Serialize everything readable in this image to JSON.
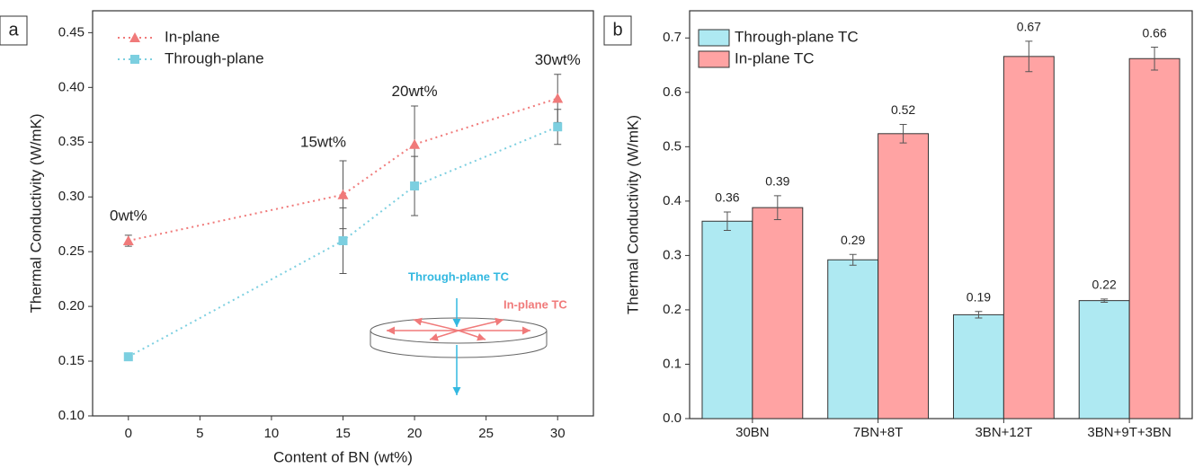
{
  "chart_data": [
    {
      "type": "line",
      "panel_label": "a",
      "x_label": "Content of BN (wt%)",
      "y_label": "Thermal Conductivity (W/mK)",
      "x": [
        0,
        15,
        20,
        30
      ],
      "series": [
        {
          "name": "In-plane",
          "color": "#f07a7a",
          "marker": "triangle",
          "values": [
            0.26,
            0.302,
            0.348,
            0.39
          ],
          "errors": [
            0.005,
            0.031,
            0.035,
            0.022
          ]
        },
        {
          "name": "Through-plane",
          "color": "#7ccfe0",
          "marker": "square",
          "values": [
            0.154,
            0.26,
            0.31,
            0.364
          ],
          "errors": [
            0.003,
            0.03,
            0.027,
            0.016
          ]
        }
      ],
      "annotations": [
        "0wt%",
        "15wt%",
        "20wt%",
        "30wt%"
      ],
      "inset_labels": [
        "Through-plane TC",
        "In-plane TC"
      ],
      "xlim": [
        -2.5,
        32.5
      ],
      "xticks": [
        0,
        5,
        10,
        15,
        20,
        25,
        30
      ],
      "ylim": [
        0.1,
        0.47
      ],
      "yticks": [
        {
          "value": 0.1,
          "label": "0.10"
        },
        0.15,
        {
          "value": 0.2,
          "label": "0.20"
        },
        0.25,
        {
          "value": 0.3,
          "label": "0.30"
        },
        0.35,
        {
          "value": 0.4,
          "label": "0.40"
        },
        0.45
      ],
      "legend": "upper-left",
      "grid": false
    },
    {
      "type": "bar",
      "panel_label": "b",
      "y_label": "Thermal Conductivity (W/mK)",
      "categories": [
        "30BN",
        "7BN+8T",
        "3BN+12T",
        "3BN+9T+3BN"
      ],
      "series": [
        {
          "name": "Through-plane TC",
          "color": "#aee9f2",
          "values": [
            0.363,
            0.292,
            0.191,
            0.217
          ],
          "errors": [
            0.017,
            0.01,
            0.006,
            0.003
          ],
          "value_labels": [
            "0.36",
            "0.29",
            "0.19",
            "0.22"
          ]
        },
        {
          "name": "In-plane TC",
          "color": "#ffa3a3",
          "values": [
            0.388,
            0.524,
            0.666,
            0.662
          ],
          "errors": [
            0.022,
            0.017,
            0.028,
            0.021
          ],
          "value_labels": [
            "0.39",
            "0.52",
            "0.67",
            "0.66"
          ]
        }
      ],
      "ylim": [
        0,
        0.75
      ],
      "yticks": [
        {
          "value": 0,
          "label": "0.0"
        },
        0.1,
        0.2,
        0.3,
        0.4,
        0.5,
        0.6,
        0.7
      ],
      "legend": "upper-left",
      "grid": false
    }
  ]
}
